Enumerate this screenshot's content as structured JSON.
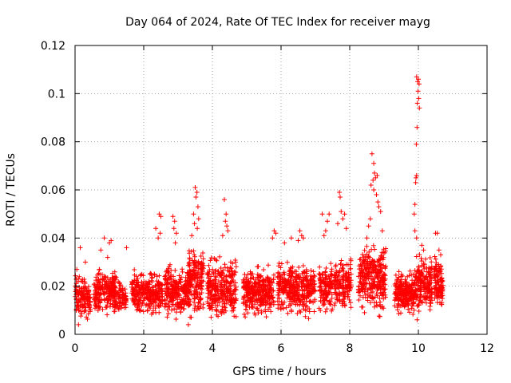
{
  "chart_data": {
    "type": "scatter",
    "title": "Day 064 of 2024, Rate Of TEC Index for receiver mayg",
    "xlabel": "GPS time / hours",
    "ylabel": "ROTI / TECUs",
    "xlim": [
      0,
      12
    ],
    "ylim": [
      0,
      0.12
    ],
    "x_ticks": [
      0,
      2,
      4,
      6,
      8,
      10,
      12
    ],
    "x_tick_labels": [
      "0",
      "2",
      "4",
      "6",
      "8",
      "10",
      "12"
    ],
    "y_ticks": [
      0,
      0.02,
      0.04,
      0.06,
      0.08,
      0.1,
      0.12
    ],
    "y_tick_labels": [
      "0",
      "0.02",
      "0.04",
      "0.06",
      "0.08",
      "0.1",
      "0.12"
    ],
    "grid": true,
    "marker": "+",
    "series": [
      {
        "name": "ROTI",
        "color": "#ff0000",
        "clusters": [
          {
            "x_range": [
              0.0,
              0.45
            ],
            "y_range": [
              0.004,
              0.026
            ],
            "count": 140
          },
          {
            "x_range": [
              0.55,
              1.2
            ],
            "y_range": [
              0.006,
              0.03
            ],
            "count": 220
          },
          {
            "x_range": [
              1.15,
              1.5
            ],
            "y_range": [
              0.006,
              0.024
            ],
            "count": 80
          },
          {
            "x_range": [
              1.65,
              2.55
            ],
            "y_range": [
              0.006,
              0.028
            ],
            "count": 300
          },
          {
            "x_range": [
              2.6,
              3.35
            ],
            "y_range": [
              0.005,
              0.03
            ],
            "count": 260
          },
          {
            "x_range": [
              3.3,
              3.75
            ],
            "y_range": [
              0.004,
              0.04
            ],
            "count": 180
          },
          {
            "x_range": [
              3.85,
              4.7
            ],
            "y_range": [
              0.004,
              0.034
            ],
            "count": 300
          },
          {
            "x_range": [
              4.9,
              5.8
            ],
            "y_range": [
              0.005,
              0.03
            ],
            "count": 320
          },
          {
            "x_range": [
              5.9,
              7.0
            ],
            "y_range": [
              0.005,
              0.034
            ],
            "count": 380
          },
          {
            "x_range": [
              7.1,
              7.5
            ],
            "y_range": [
              0.006,
              0.032
            ],
            "count": 130
          },
          {
            "x_range": [
              7.55,
              8.05
            ],
            "y_range": [
              0.006,
              0.036
            ],
            "count": 160
          },
          {
            "x_range": [
              8.25,
              9.05
            ],
            "y_range": [
              0.005,
              0.04
            ],
            "count": 320
          },
          {
            "x_range": [
              9.3,
              9.9
            ],
            "y_range": [
              0.006,
              0.028
            ],
            "count": 220
          },
          {
            "x_range": [
              9.9,
              10.4
            ],
            "y_range": [
              0.005,
              0.036
            ],
            "count": 200
          },
          {
            "x_range": [
              10.45,
              10.72
            ],
            "y_range": [
              0.008,
              0.034
            ],
            "count": 110
          }
        ],
        "points": [
          [
            0.05,
            0.027
          ],
          [
            0.15,
            0.036
          ],
          [
            0.3,
            0.03
          ],
          [
            0.1,
            0.004
          ],
          [
            0.75,
            0.035
          ],
          [
            0.85,
            0.04
          ],
          [
            1.0,
            0.038
          ],
          [
            1.05,
            0.039
          ],
          [
            0.95,
            0.032
          ],
          [
            1.5,
            0.036
          ],
          [
            2.45,
            0.05
          ],
          [
            2.5,
            0.049
          ],
          [
            2.35,
            0.044
          ],
          [
            2.48,
            0.042
          ],
          [
            2.42,
            0.04
          ],
          [
            2.85,
            0.049
          ],
          [
            2.9,
            0.047
          ],
          [
            2.88,
            0.044
          ],
          [
            2.95,
            0.042
          ],
          [
            2.92,
            0.038
          ],
          [
            3.5,
            0.061
          ],
          [
            3.55,
            0.059
          ],
          [
            3.52,
            0.057
          ],
          [
            3.58,
            0.053
          ],
          [
            3.45,
            0.05
          ],
          [
            3.6,
            0.048
          ],
          [
            3.48,
            0.046
          ],
          [
            3.4,
            0.041
          ],
          [
            3.56,
            0.044
          ],
          [
            3.3,
            0.004
          ],
          [
            4.35,
            0.056
          ],
          [
            4.4,
            0.05
          ],
          [
            4.38,
            0.047
          ],
          [
            4.42,
            0.045
          ],
          [
            4.45,
            0.043
          ],
          [
            4.3,
            0.041
          ],
          [
            5.8,
            0.043
          ],
          [
            5.85,
            0.042
          ],
          [
            5.75,
            0.04
          ],
          [
            6.1,
            0.038
          ],
          [
            6.3,
            0.04
          ],
          [
            6.55,
            0.043
          ],
          [
            6.6,
            0.041
          ],
          [
            6.65,
            0.04
          ],
          [
            6.5,
            0.039
          ],
          [
            7.2,
            0.05
          ],
          [
            7.35,
            0.047
          ],
          [
            7.4,
            0.05
          ],
          [
            7.3,
            0.043
          ],
          [
            7.25,
            0.041
          ],
          [
            7.7,
            0.059
          ],
          [
            7.72,
            0.057
          ],
          [
            7.75,
            0.051
          ],
          [
            7.8,
            0.048
          ],
          [
            7.85,
            0.05
          ],
          [
            7.65,
            0.046
          ],
          [
            7.9,
            0.044
          ],
          [
            8.65,
            0.075
          ],
          [
            8.7,
            0.071
          ],
          [
            8.72,
            0.067
          ],
          [
            8.75,
            0.065
          ],
          [
            8.68,
            0.064
          ],
          [
            8.8,
            0.066
          ],
          [
            8.62,
            0.062
          ],
          [
            8.7,
            0.06
          ],
          [
            8.78,
            0.058
          ],
          [
            8.82,
            0.055
          ],
          [
            8.85,
            0.053
          ],
          [
            8.9,
            0.051
          ],
          [
            8.6,
            0.048
          ],
          [
            8.55,
            0.045
          ],
          [
            8.95,
            0.043
          ],
          [
            8.5,
            0.04
          ],
          [
            9.95,
            0.107
          ],
          [
            10.0,
            0.106
          ],
          [
            9.98,
            0.105
          ],
          [
            10.02,
            0.104
          ],
          [
            9.99,
            0.101
          ],
          [
            10.01,
            0.098
          ],
          [
            9.97,
            0.096
          ],
          [
            10.03,
            0.094
          ],
          [
            9.96,
            0.086
          ],
          [
            9.94,
            0.079
          ],
          [
            9.95,
            0.066
          ],
          [
            9.93,
            0.065
          ],
          [
            9.92,
            0.063
          ],
          [
            9.9,
            0.054
          ],
          [
            9.88,
            0.05
          ],
          [
            9.9,
            0.043
          ],
          [
            9.95,
            0.04
          ],
          [
            10.1,
            0.037
          ],
          [
            10.15,
            0.035
          ],
          [
            10.5,
            0.042
          ],
          [
            10.55,
            0.042
          ],
          [
            10.6,
            0.035
          ],
          [
            10.65,
            0.033
          ]
        ]
      }
    ]
  }
}
